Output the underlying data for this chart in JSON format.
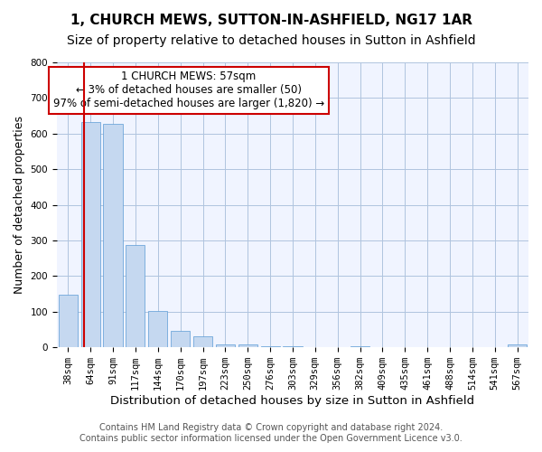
{
  "title": "1, CHURCH MEWS, SUTTON-IN-ASHFIELD, NG17 1AR",
  "subtitle": "Size of property relative to detached houses in Sutton in Ashfield",
  "xlabel": "Distribution of detached houses by size in Sutton in Ashfield",
  "ylabel": "Number of detached properties",
  "bar_color": "#c5d8f0",
  "bar_edge_color": "#5b9bd5",
  "bg_color": "#f0f4ff",
  "grid_color": "#b0c4de",
  "tick_labels": [
    "38sqm",
    "64sqm",
    "91sqm",
    "117sqm",
    "144sqm",
    "170sqm",
    "197sqm",
    "223sqm",
    "250sqm",
    "276sqm",
    "303sqm",
    "329sqm",
    "356sqm",
    "382sqm",
    "409sqm",
    "435sqm",
    "461sqm",
    "488sqm",
    "514sqm",
    "541sqm",
    "567sqm"
  ],
  "bar_values": [
    148,
    632,
    627,
    288,
    102,
    45,
    30,
    8,
    7,
    2,
    2,
    0,
    0,
    2,
    0,
    0,
    0,
    0,
    0,
    0,
    8
  ],
  "ylim": [
    0,
    800
  ],
  "yticks": [
    0,
    100,
    200,
    300,
    400,
    500,
    600,
    700,
    800
  ],
  "property_line_x": 1,
  "property_line_label": "1 CHURCH MEWS: 57sqm",
  "annotation_line1": "1 CHURCH MEWS: 57sqm",
  "annotation_line2": "← 3% of detached houses are smaller (50)",
  "annotation_line3": "97% of semi-detached houses are larger (1,820) →",
  "annotation_box_color": "#ffffff",
  "annotation_box_edge_color": "#cc0000",
  "footer_line1": "Contains HM Land Registry data © Crown copyright and database right 2024.",
  "footer_line2": "Contains public sector information licensed under the Open Government Licence v3.0.",
  "title_fontsize": 11,
  "subtitle_fontsize": 10,
  "xlabel_fontsize": 9.5,
  "ylabel_fontsize": 9,
  "tick_fontsize": 7.5,
  "footer_fontsize": 7,
  "annotation_fontsize": 8.5
}
